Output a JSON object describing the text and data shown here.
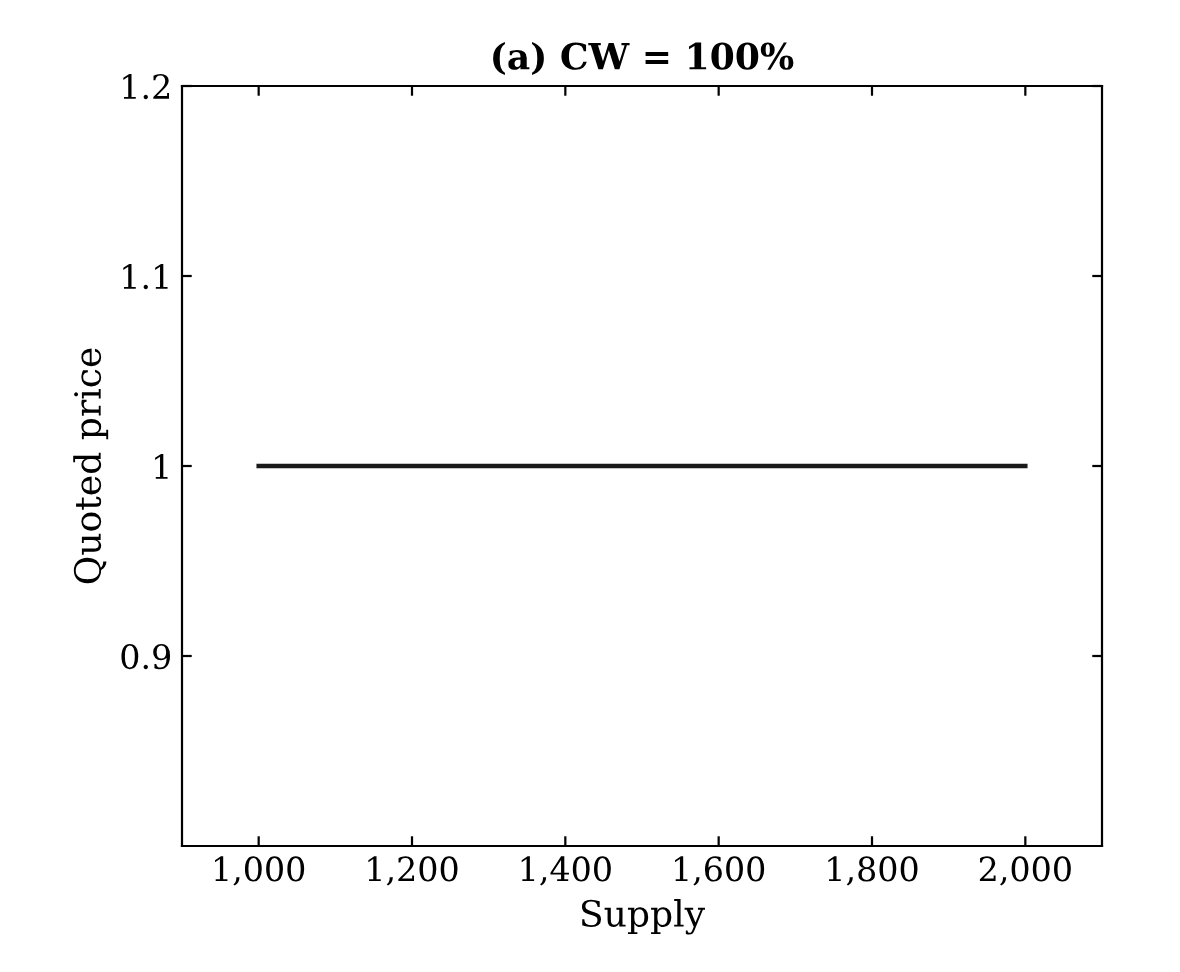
{
  "chart_data": {
    "type": "line",
    "title": "(a) CW = 100%",
    "xlabel": "Supply",
    "ylabel": "Quoted price",
    "x": [
      1000,
      2000
    ],
    "series": [
      {
        "color": "#1a1a1a",
        "values": [
          1,
          1
        ]
      }
    ],
    "xlim": [
      900,
      2100
    ],
    "ylim": [
      0.8,
      1.2
    ],
    "xticks": [
      {
        "value": 1000,
        "label": "1,000"
      },
      {
        "value": 1200,
        "label": "1,200"
      },
      {
        "value": 1400,
        "label": "1,400"
      },
      {
        "value": 1600,
        "label": "1,600"
      },
      {
        "value": 1800,
        "label": "1,800"
      },
      {
        "value": 2000,
        "label": "2,000"
      }
    ],
    "yticks": [
      0.9,
      1,
      1.1,
      1.2
    ],
    "marker": "none",
    "line_style": "solid",
    "grid": false,
    "legend": false
  }
}
